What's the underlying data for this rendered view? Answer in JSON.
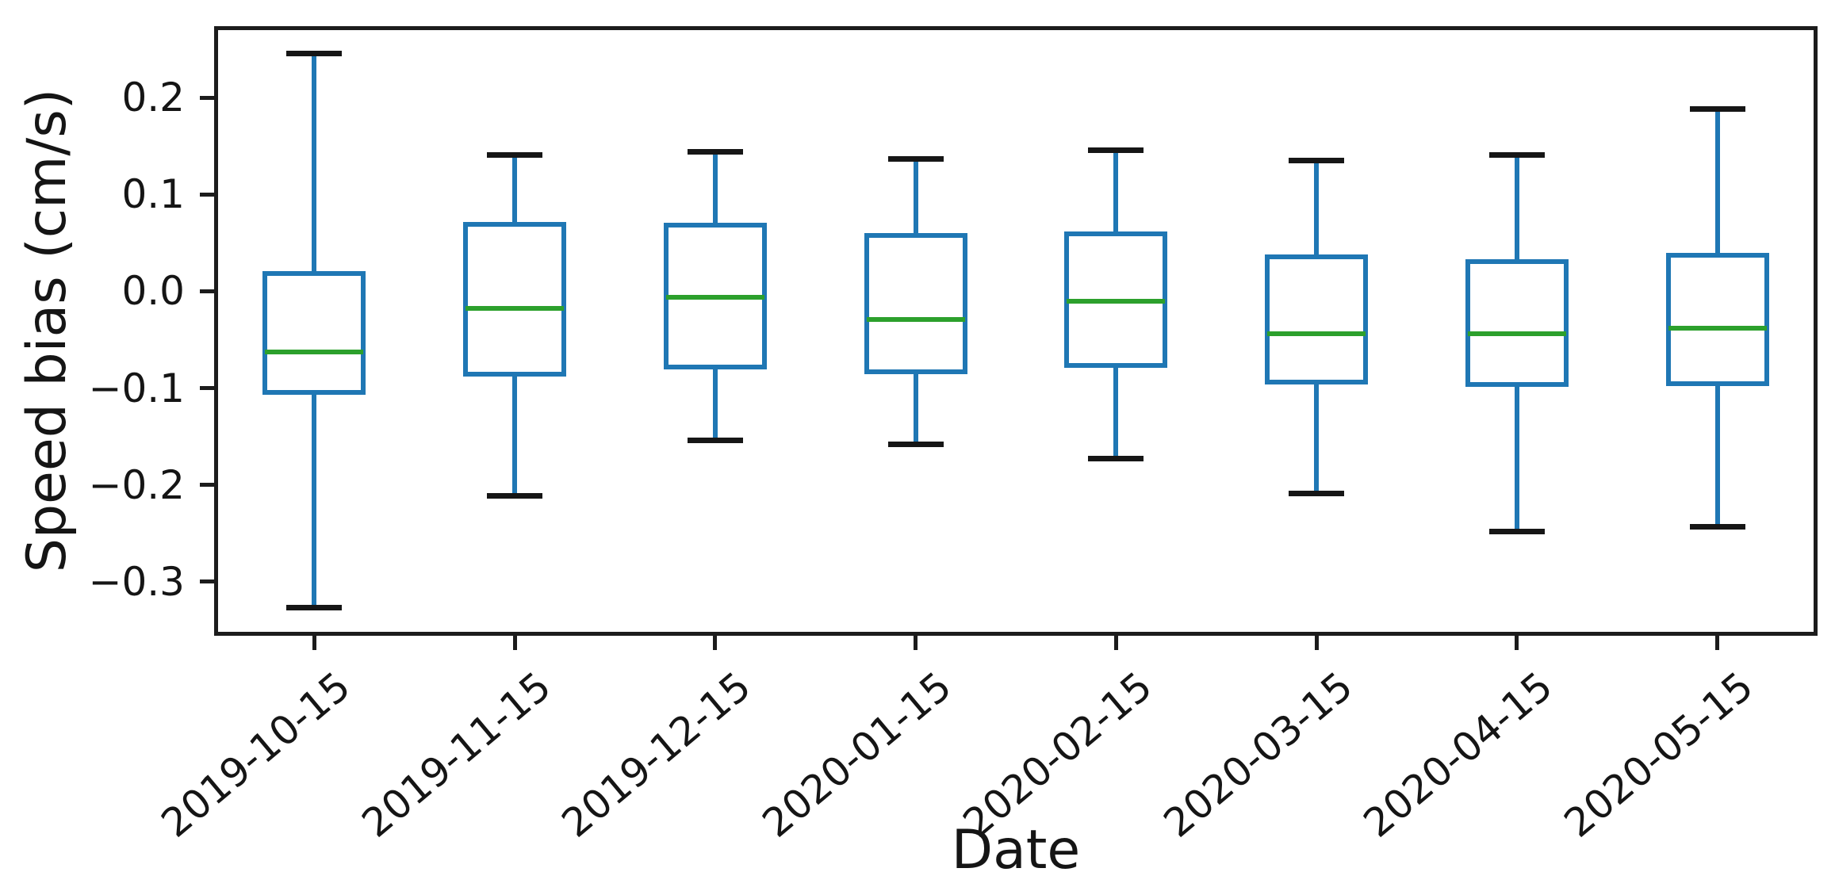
{
  "figure": {
    "background": "#ffffff"
  },
  "chart_data": {
    "type": "boxplot",
    "title": "",
    "xlabel": "Date",
    "ylabel": "Speed bias (cm/s)",
    "grid": false,
    "legend": null,
    "categories": [
      "2019-10-15",
      "2019-11-15",
      "2019-12-15",
      "2020-01-15",
      "2020-02-15",
      "2020-03-15",
      "2020-04-15",
      "2020-05-15"
    ],
    "x_tick_rotation_deg": 40,
    "y_ticks": [
      0.2,
      0.1,
      0.0,
      -0.1,
      -0.2,
      -0.3
    ],
    "y_tick_labels": [
      "0.2",
      "0.1",
      "0.0",
      "−0.1",
      "−0.2",
      "−0.3"
    ],
    "ylim": [
      -0.356,
      0.274
    ],
    "colors": {
      "box": "#1f77b4",
      "whisker": "#1f77b4",
      "median": "#2ca02c",
      "cap": "#161616",
      "axis": "#1c1c1c",
      "text": "#151515"
    },
    "series": [
      {
        "label": "2019-10-15",
        "whisker_low": -0.327,
        "q1": -0.107,
        "median": -0.063,
        "q3": 0.021,
        "whisker_high": 0.246
      },
      {
        "label": "2019-11-15",
        "whisker_low": -0.211,
        "q1": -0.088,
        "median": -0.018,
        "q3": 0.072,
        "whisker_high": 0.141
      },
      {
        "label": "2019-12-15",
        "whisker_low": -0.154,
        "q1": -0.081,
        "median": -0.006,
        "q3": 0.071,
        "whisker_high": 0.144
      },
      {
        "label": "2020-01-15",
        "whisker_low": -0.158,
        "q1": -0.086,
        "median": -0.029,
        "q3": 0.06,
        "whisker_high": 0.137
      },
      {
        "label": "2020-02-15",
        "whisker_low": -0.173,
        "q1": -0.079,
        "median": -0.01,
        "q3": 0.062,
        "whisker_high": 0.146
      },
      {
        "label": "2020-03-15",
        "whisker_low": -0.209,
        "q1": -0.096,
        "median": -0.044,
        "q3": 0.038,
        "whisker_high": 0.135
      },
      {
        "label": "2020-04-15",
        "whisker_low": -0.248,
        "q1": -0.099,
        "median": -0.044,
        "q3": 0.033,
        "whisker_high": 0.141
      },
      {
        "label": "2020-05-15",
        "whisker_low": -0.243,
        "q1": -0.098,
        "median": -0.038,
        "q3": 0.04,
        "whisker_high": 0.188
      }
    ]
  }
}
